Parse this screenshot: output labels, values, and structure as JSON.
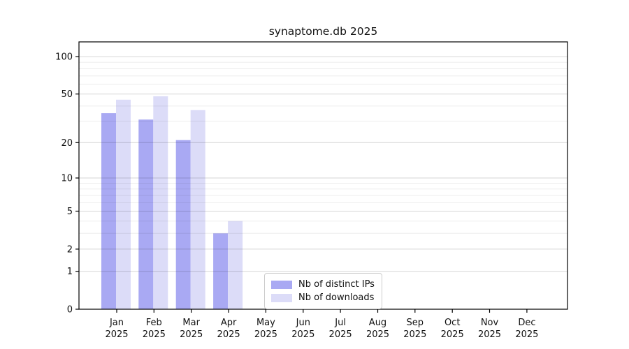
{
  "chart_data": {
    "type": "bar",
    "title": "synaptome.db 2025",
    "categories": [
      "Jan",
      "Feb",
      "Mar",
      "Apr",
      "May",
      "Jun",
      "Jul",
      "Aug",
      "Sep",
      "Oct",
      "Nov",
      "Dec"
    ],
    "x_axis": {
      "tick_label_line2": "2025"
    },
    "series": [
      {
        "name": "Nb of distinct IPs",
        "color": "#a9a9f3",
        "values": [
          35,
          31,
          21,
          3,
          null,
          null,
          null,
          null,
          null,
          null,
          null,
          null
        ]
      },
      {
        "name": "Nb of downloads",
        "color": "#dcdcf8",
        "values": [
          45,
          48,
          37,
          4,
          null,
          null,
          null,
          null,
          null,
          null,
          null,
          null
        ]
      }
    ],
    "y_axis": {
      "scale": "log1p",
      "ticks": [
        0,
        1,
        2,
        5,
        10,
        20,
        50,
        100
      ],
      "minor_ticks": [
        3,
        4,
        6,
        7,
        8,
        9,
        30,
        40,
        60,
        70,
        80,
        90
      ],
      "max": 131
    },
    "grid": true,
    "legend": {
      "position": "lower-center"
    },
    "colors": {
      "major_grid": "rgba(0,0,0,0.16)",
      "minor_grid": "rgba(0,0,0,0.07)",
      "spine": "#000000",
      "text": "#111111"
    }
  }
}
